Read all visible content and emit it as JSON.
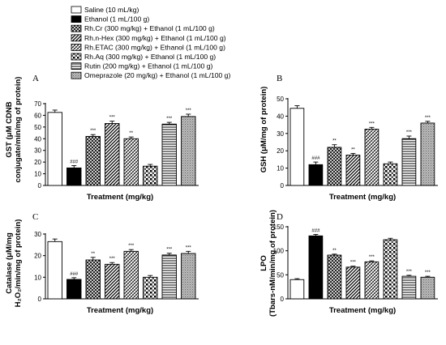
{
  "legend": [
    {
      "label": "Saline (10 mL/kg)",
      "pattern": "p0"
    },
    {
      "label": "Ethanol (1 mL/100 g)",
      "pattern": "p1"
    },
    {
      "label": "Rh.Cr (300 mg/kg) + Ethanol (1 mL/100 g)",
      "pattern": "p2"
    },
    {
      "label": "Rh.n-Hex (300 mg/kg) + Ethanol (1 mL/100 g)",
      "pattern": "p3"
    },
    {
      "label": "Rh.ETAC (300 mg/kg) + Ethanol (1 mL/100 g)",
      "pattern": "p4"
    },
    {
      "label": "Rh.Aq (300 mg/kg) + Ethanol (1 mL/100 g)",
      "pattern": "p5"
    },
    {
      "label": "Rutin (200 mg/kg) + Ethanol (1 mL/100 g)",
      "pattern": "p6"
    },
    {
      "label": "Omeprazole (20 mg/kg) + Ethanol (1 mL/100 g)",
      "pattern": "p7"
    }
  ],
  "chart_data": [
    {
      "type": "bar",
      "panel": "A",
      "ylabel_lines": [
        "GST (μM CDNB",
        "conjugate/min/mg of protein)"
      ],
      "xlabel": "Treatment (mg/kg)",
      "ylim": [
        0,
        70
      ],
      "yticks": [
        "0",
        "10",
        "20",
        "30",
        "40",
        "50",
        "60",
        "70"
      ],
      "values": [
        62.5,
        15,
        42,
        53,
        40,
        16.5,
        52.5,
        59
      ],
      "errors": [
        2,
        2,
        1.5,
        2,
        1.5,
        1.5,
        1.5,
        2
      ],
      "significance": [
        "",
        "###",
        "***",
        "***",
        "**",
        "",
        "***",
        "***"
      ]
    },
    {
      "type": "bar",
      "panel": "B",
      "ylabel_lines": [
        "GSH (μM/mg of protein)"
      ],
      "xlabel": "Treatment (mg/kg)",
      "ylim": [
        0,
        50
      ],
      "yticks": [
        "0",
        "10",
        "20",
        "30",
        "40",
        "50"
      ],
      "values": [
        44.5,
        12,
        22,
        17.5,
        32.5,
        12.5,
        27,
        36
      ],
      "errors": [
        1.5,
        1.5,
        1.5,
        1,
        1,
        1,
        1.5,
        1
      ],
      "significance": [
        "",
        "###",
        "**",
        "**",
        "***",
        "",
        "***",
        "***"
      ]
    },
    {
      "type": "bar",
      "panel": "C",
      "ylabel_lines": [
        "Catalase (μM/mg",
        "H₂O₂/min/mg of protein)"
      ],
      "xlabel": "Treatment (mg/kg)",
      "ylim": [
        0,
        30
      ],
      "yticks": [
        "0",
        "10",
        "20",
        "30"
      ],
      "values": [
        26.5,
        9,
        18,
        16,
        22,
        10,
        20.3,
        21
      ],
      "errors": [
        1.2,
        0.8,
        1.2,
        0.8,
        0.8,
        0.8,
        0.8,
        1
      ],
      "significance": [
        "",
        "###",
        "**",
        "***",
        "***",
        "",
        "***",
        "***"
      ]
    },
    {
      "type": "bar",
      "panel": "D",
      "ylabel_lines": [
        "LPO",
        "(Tbars-nM/min/mg of protein)"
      ],
      "xlabel": "Treatment (mg/kg)",
      "ylim": [
        0,
        150
      ],
      "yticks": [
        "0",
        "50",
        "100",
        "150"
      ],
      "values": [
        40,
        131,
        91,
        66,
        77,
        123,
        47,
        45
      ],
      "errors": [
        2,
        3,
        2,
        2,
        2,
        3,
        2,
        2
      ],
      "significance": [
        "",
        "###",
        "**",
        "***",
        "***",
        "",
        "***",
        "***"
      ]
    }
  ]
}
